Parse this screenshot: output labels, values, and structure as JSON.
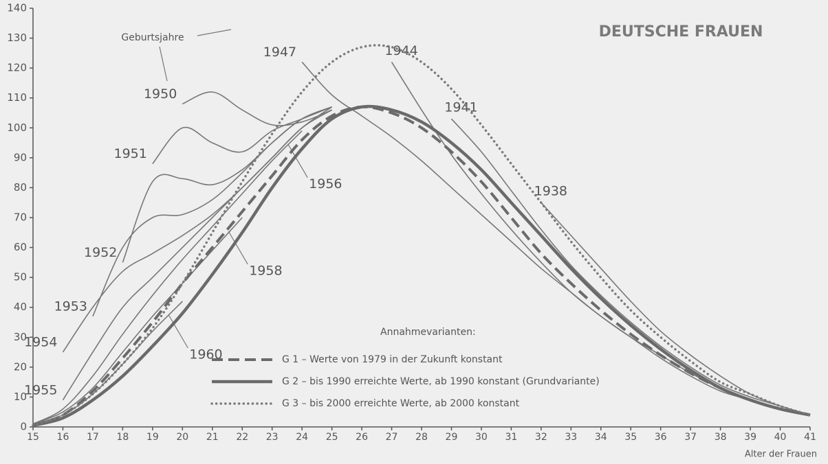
{
  "chart_data": {
    "type": "line",
    "title": "DEUTSCHE FRAUEN",
    "x_label": "Alter der Frauen",
    "annotation": "Geburtsjahre",
    "legend_title": "Annahmevarianten:",
    "x": [
      15,
      16,
      17,
      18,
      19,
      20,
      21,
      22,
      23,
      24,
      25,
      26,
      27,
      28,
      29,
      30,
      31,
      32,
      33,
      34,
      35,
      36,
      37,
      38,
      39,
      40,
      41
    ],
    "xlim": [
      15,
      41
    ],
    "xticks": [
      15,
      16,
      17,
      18,
      19,
      20,
      21,
      22,
      23,
      24,
      25,
      26,
      27,
      28,
      29,
      30,
      31,
      32,
      33,
      34,
      35,
      36,
      37,
      38,
      39,
      40,
      41
    ],
    "ylim": [
      0,
      140
    ],
    "yticks": [
      0,
      10,
      20,
      30,
      40,
      50,
      60,
      70,
      80,
      90,
      100,
      110,
      120,
      130,
      140
    ],
    "series": [
      {
        "name": "G 1 – Werte von 1979 in der Zukunft konstant",
        "color": "#6a6a6a",
        "style": "dashed",
        "values": [
          0.5,
          4,
          12,
          23,
          35,
          48,
          60,
          72,
          84,
          96,
          104,
          107,
          105,
          100,
          92,
          82,
          70,
          58,
          48,
          39,
          31,
          24,
          18,
          13,
          9,
          6,
          4
        ]
      },
      {
        "name": "G 2 – bis 1990 erreichte Werte, ab 1990 konstant (Grundvariante)",
        "color": "#6a6a6a",
        "style": "solid",
        "values": [
          0.5,
          3,
          9,
          17,
          27,
          38,
          51,
          65,
          80,
          93,
          103,
          107,
          106,
          102,
          95,
          86,
          75,
          64,
          53,
          43,
          34,
          26,
          19,
          13,
          9,
          6,
          4
        ]
      },
      {
        "name": "G 3 – bis 2000 erreichte Werte, ab 2000 konstant",
        "color": "#7a7a7a",
        "style": "dotted",
        "values": [
          0.5,
          4,
          11,
          21,
          33,
          48,
          65,
          82,
          98,
          112,
          122,
          127,
          127,
          122,
          113,
          101,
          88,
          75,
          62,
          50,
          39,
          30,
          22,
          15,
          11,
          7,
          4
        ]
      }
    ],
    "cohorts": [
      {
        "name": "1938",
        "color": "#777777",
        "values": [
          null,
          null,
          null,
          null,
          null,
          null,
          null,
          null,
          null,
          null,
          null,
          null,
          null,
          null,
          null,
          null,
          null,
          75,
          64,
          53,
          42,
          32,
          24,
          17,
          11,
          7,
          4
        ]
      },
      {
        "name": "1941",
        "color": "#777777",
        "values": [
          null,
          null,
          null,
          null,
          null,
          null,
          null,
          null,
          null,
          null,
          null,
          null,
          null,
          null,
          103,
          92,
          79,
          66,
          54,
          44,
          35,
          27,
          20,
          14,
          10,
          7,
          4
        ]
      },
      {
        "name": "1944",
        "color": "#777777",
        "values": [
          null,
          null,
          null,
          null,
          null,
          null,
          null,
          null,
          null,
          null,
          null,
          null,
          122,
          106,
          91,
          78,
          66,
          55,
          45,
          37,
          30,
          23,
          17,
          12,
          9,
          6,
          4
        ]
      },
      {
        "name": "1947",
        "color": "#777777",
        "values": [
          null,
          null,
          null,
          null,
          null,
          null,
          null,
          null,
          null,
          122,
          111,
          104,
          97,
          89,
          80,
          71,
          62,
          53,
          45,
          37,
          30,
          24,
          18,
          13,
          9,
          6,
          4
        ]
      },
      {
        "name": "1950",
        "color": "#777777",
        "values": [
          null,
          null,
          null,
          null,
          null,
          108,
          112,
          106,
          101,
          102,
          106,
          null,
          null,
          null,
          null,
          null,
          null,
          null,
          null,
          null,
          null,
          null,
          null,
          null,
          null,
          null,
          null
        ]
      },
      {
        "name": "1951",
        "color": "#777777",
        "values": [
          null,
          null,
          null,
          null,
          88,
          100,
          95,
          92,
          99,
          103,
          107,
          null,
          null,
          null,
          null,
          null,
          null,
          null,
          null,
          null,
          null,
          null,
          null,
          null,
          null,
          null,
          null
        ]
      },
      {
        "name": "1952",
        "color": "#777777",
        "values": [
          null,
          null,
          null,
          55,
          82,
          83,
          81,
          86,
          95,
          103,
          107,
          null,
          null,
          null,
          null,
          null,
          null,
          null,
          null,
          null,
          null,
          null,
          null,
          null,
          null,
          null,
          null
        ]
      },
      {
        "name": "1953",
        "color": "#777777",
        "values": [
          null,
          null,
          37,
          60,
          70,
          71,
          76,
          85,
          95,
          103,
          107,
          null,
          null,
          null,
          null,
          null,
          null,
          null,
          null,
          null,
          null,
          null,
          null,
          null,
          null,
          null,
          null
        ]
      },
      {
        "name": "1954",
        "color": "#777777",
        "values": [
          null,
          25,
          40,
          52,
          58,
          64,
          71,
          80,
          90,
          100,
          107,
          null,
          null,
          null,
          null,
          null,
          null,
          null,
          null,
          null,
          null,
          null,
          null,
          null,
          null,
          null,
          null
        ]
      },
      {
        "name": "1955",
        "color": "#777777",
        "values": [
          null,
          9,
          25,
          40,
          50,
          60,
          70,
          80,
          90,
          100,
          106,
          null,
          null,
          null,
          null,
          null,
          null,
          null,
          null,
          null,
          null,
          null,
          null,
          null,
          null,
          null,
          null
        ]
      },
      {
        "name": "1956",
        "color": "#777777",
        "values": [
          1,
          6,
          17,
          31,
          44,
          56,
          67,
          78,
          89,
          99,
          null,
          null,
          null,
          null,
          null,
          null,
          null,
          null,
          null,
          null,
          null,
          null,
          null,
          null,
          null,
          null,
          null
        ]
      },
      {
        "name": "1958",
        "color": "#777777",
        "values": [
          1,
          5,
          13,
          25,
          37,
          48,
          59,
          70,
          null,
          null,
          null,
          null,
          null,
          null,
          null,
          null,
          null,
          null,
          null,
          null,
          null,
          null,
          null,
          null,
          null,
          null,
          null
        ]
      },
      {
        "name": "1960",
        "color": "#777777",
        "values": [
          1,
          4,
          11,
          21,
          32,
          42,
          null,
          null,
          null,
          null,
          null,
          null,
          null,
          null,
          null,
          null,
          null,
          null,
          null,
          null,
          null,
          null,
          null,
          null,
          null,
          null,
          null
        ]
      }
    ]
  }
}
